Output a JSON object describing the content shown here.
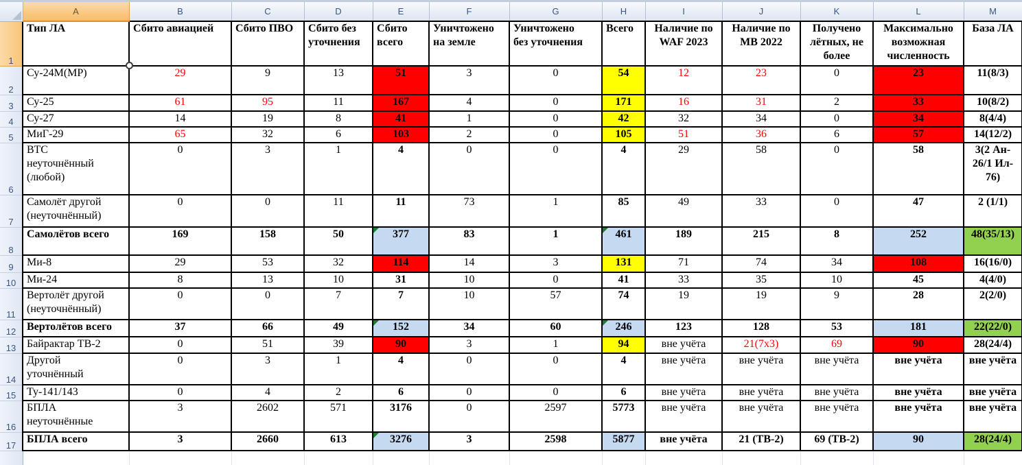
{
  "spreadsheet": {
    "name": "aircraft-losses-sheet",
    "selected_cell": "A1",
    "selected_column": "A",
    "selected_row": "1",
    "column_letters": [
      "A",
      "B",
      "C",
      "D",
      "E",
      "F",
      "G",
      "H",
      "I",
      "J",
      "K",
      "L",
      "M"
    ],
    "colors": {
      "red": "#FF0000",
      "yellow": "#FFFF00",
      "blue": "#C5D9F1",
      "green": "#92D050",
      "redtext": "#FF0000",
      "tri": "#1E7B34"
    },
    "headers": [
      "Тип ЛА",
      "Сбито авиацией",
      "Сбито ПВО",
      "Сбито без\nуточнения",
      "Сбито\nвсего",
      "Уничтожено\nна земле",
      "Уничтожено\nбез уточнения",
      "Всего",
      "Наличие по\nWAF 2023",
      "Наличие по\nМВ 2022",
      "Получено\nлётных, не\nболее",
      "Максимально\nвозможная\nчисленность",
      "База ЛА"
    ],
    "rows": [
      {
        "num": "2",
        "cells": [
          "Су-24М(МР)",
          {
            "v": "29",
            "fg": "red"
          },
          "9",
          "13",
          {
            "v": "51",
            "fill": "red"
          },
          "3",
          "0",
          {
            "v": "54",
            "fill": "yellow"
          },
          {
            "v": "12",
            "fg": "red"
          },
          {
            "v": "23",
            "fg": "red"
          },
          "0",
          {
            "v": "23",
            "fill": "red"
          },
          "11(8/3)"
        ]
      },
      {
        "num": "3",
        "cells": [
          "Су-25",
          {
            "v": "61",
            "fg": "red"
          },
          {
            "v": "95",
            "fg": "red"
          },
          "11",
          {
            "v": "167",
            "fill": "red"
          },
          "4",
          "0",
          {
            "v": "171",
            "fill": "yellow"
          },
          {
            "v": "16",
            "fg": "red"
          },
          {
            "v": "31",
            "fg": "red"
          },
          "2",
          {
            "v": "33",
            "fill": "red"
          },
          "10(8/2)"
        ]
      },
      {
        "num": "4",
        "cells": [
          "Су-27",
          "14",
          "19",
          "8",
          {
            "v": "41",
            "fill": "red"
          },
          "1",
          "0",
          {
            "v": "42",
            "fill": "yellow"
          },
          "32",
          "34",
          "0",
          {
            "v": "34",
            "fill": "red"
          },
          "8(4/4)"
        ]
      },
      {
        "num": "5",
        "cells": [
          "МиГ-29",
          {
            "v": "65",
            "fg": "red"
          },
          "32",
          "6",
          {
            "v": "103",
            "fill": "red"
          },
          "2",
          "0",
          {
            "v": "105",
            "fill": "yellow"
          },
          {
            "v": "51",
            "fg": "red"
          },
          {
            "v": "36",
            "fg": "red"
          },
          "6",
          {
            "v": "57",
            "fill": "red"
          },
          "14(12/2)"
        ]
      },
      {
        "num": "6",
        "cells": [
          "ВТС\nнеуточнённый\n(любой)",
          "0",
          "3",
          "1",
          "4",
          "0",
          "0",
          "4",
          "29",
          "58",
          "0",
          "58",
          "3(2 Ан-\n26/1 Ил-\n76)"
        ]
      },
      {
        "num": "7",
        "cells": [
          "Самолёт другой\n(неуточнённый)",
          "0",
          "0",
          "11",
          "11",
          "73",
          "1",
          "85",
          "49",
          "33",
          "0",
          "47",
          "2 (1/1)"
        ]
      },
      {
        "num": "8",
        "total": true,
        "cells": [
          "Самолётов всего",
          "169",
          "158",
          "50",
          {
            "v": "377",
            "fill": "blue",
            "tri": true
          },
          "83",
          "1",
          {
            "v": "461",
            "fill": "blue",
            "tri": true
          },
          "189",
          "215",
          "8",
          {
            "v": "252",
            "fill": "blue"
          },
          {
            "v": "48(35/13)",
            "fill": "green"
          }
        ]
      },
      {
        "num": "9",
        "cells": [
          "Ми-8",
          "29",
          "53",
          "32",
          {
            "v": "114",
            "fill": "red"
          },
          "14",
          "3",
          {
            "v": "131",
            "fill": "yellow"
          },
          "71",
          "74",
          "34",
          {
            "v": "108",
            "fill": "red"
          },
          "16(16/0)"
        ]
      },
      {
        "num": "10",
        "cells": [
          "Ми-24",
          "8",
          "13",
          "10",
          "31",
          "10",
          "0",
          "41",
          "33",
          "35",
          "10",
          "45",
          "4(4/0)"
        ]
      },
      {
        "num": "11",
        "cells": [
          "Вертолёт другой\n(неуточнённый)",
          "0",
          "0",
          "7",
          "7",
          "10",
          "57",
          "74",
          "19",
          "19",
          "9",
          "28",
          "2(2/0)"
        ]
      },
      {
        "num": "12",
        "total": true,
        "cells": [
          "Вертолётов всего",
          "37",
          "66",
          "49",
          {
            "v": "152",
            "fill": "blue",
            "tri": true
          },
          "34",
          "60",
          {
            "v": "246",
            "fill": "blue",
            "tri": true
          },
          "123",
          "128",
          "53",
          {
            "v": "181",
            "fill": "blue"
          },
          {
            "v": "22(22/0)",
            "fill": "green"
          }
        ]
      },
      {
        "num": "13",
        "cells": [
          "Байрактар ТВ-2",
          "0",
          "51",
          "39",
          {
            "v": "90",
            "fill": "red"
          },
          "3",
          "1",
          {
            "v": "94",
            "fill": "yellow"
          },
          "вне учёта",
          {
            "v": "21(7х3)",
            "fg": "red"
          },
          {
            "v": "69",
            "fg": "red"
          },
          {
            "v": "90",
            "fill": "red"
          },
          "28(24/4)"
        ]
      },
      {
        "num": "14",
        "cells": [
          "Другой\nуточнённый",
          "0",
          "3",
          "1",
          "4",
          "0",
          "0",
          "4",
          "вне учёта",
          "вне учёта",
          "вне учёта",
          "вне учёта",
          "вне учёта"
        ]
      },
      {
        "num": "15",
        "cells": [
          "Ту-141/143",
          "0",
          "4",
          "2",
          "6",
          "0",
          "0",
          "6",
          "вне учёта",
          "вне учёта",
          "вне учёта",
          "вне учёта",
          "вне учёта"
        ]
      },
      {
        "num": "16",
        "cells": [
          "БПЛА\nнеуточнённые",
          "3",
          "2602",
          "571",
          "3176",
          "0",
          "2597",
          "5773",
          "вне учёта",
          "вне учёта",
          "вне учёта",
          "вне учёта",
          "вне учёта"
        ]
      },
      {
        "num": "17",
        "total": true,
        "cells": [
          "БПЛА всего",
          "3",
          "2660",
          "613",
          {
            "v": "3276",
            "fill": "blue",
            "tri": true
          },
          "3",
          "2598",
          {
            "v": "5877",
            "fill": "blue"
          },
          "вне учёта",
          "21 (ТВ-2)",
          "69 (ТВ-2)",
          {
            "v": "90",
            "fill": "blue"
          },
          {
            "v": "28(24/4)",
            "fill": "green"
          }
        ]
      }
    ]
  }
}
